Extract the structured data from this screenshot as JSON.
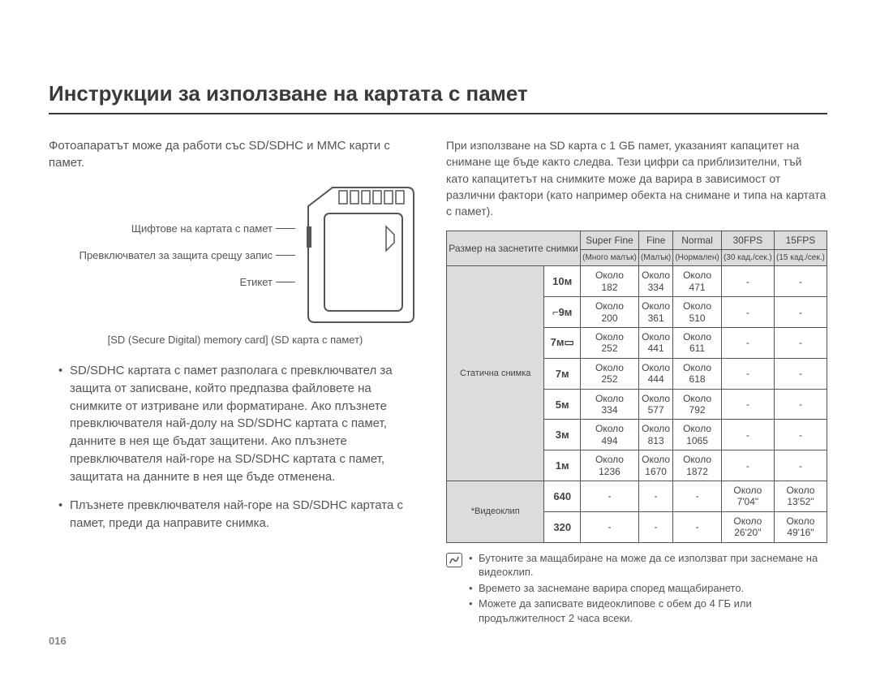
{
  "title": "Инструкции за използване на картата с памет",
  "page_number": "016",
  "left": {
    "intro": "Фотоапаратът може да работи със SD/SDHC и MMC карти с памет.",
    "diagram_labels": {
      "pins": "Щифтове на картата с памет",
      "switch": "Превключвател за защита срещу запис",
      "label": "Етикет"
    },
    "caption": "[SD (Secure Digital) memory card] (SD карта с памет)",
    "bullets": [
      "SD/SDHC картата с памет разполага с превключвател за защита от записване, който предпазва файловете на снимките от изтриване или форматиране. Ако плъзнете превключвателя най-долу на SD/SDHC картата с памет, данните в нея ще бъдат защитени. Ако плъзнете превключвателя най-горе на SD/SDHC картата с памет, защитата на данните в нея ще бъде отменена.",
      "Плъзнете превключвателя най-горе на SD/SDHC картата с памет, преди да направите снимка."
    ]
  },
  "right": {
    "intro": "При използване на SD карта с 1 GБ памет, указаният капацитет на снимане ще бъде както следва. Тези цифри са приблизителни, тъй като капацитетът на снимките може да варира в зависимост от различни фактори (като например обекта на снимане и типа на картата с памет).",
    "table": {
      "header_row1": [
        "Размер на заснетите снимки",
        "Super Fine",
        "Fine",
        "Normal",
        "30FPS",
        "15FPS"
      ],
      "header_row2": [
        "",
        "(Много малък)",
        "(Малък)",
        "(Нормален)",
        "(30 кад./сек.)",
        "(15 кад./сек.)"
      ],
      "section_still": "Статична снимка",
      "section_video": "*Видеоклип",
      "still_sizes": [
        "10ᴍ",
        "⌐9ᴍ",
        "7ᴍ▭",
        "7ᴍ",
        "5ᴍ",
        "3ᴍ",
        "1ᴍ"
      ],
      "around": "Около",
      "still_rows": [
        [
          "182",
          "334",
          "471"
        ],
        [
          "200",
          "361",
          "510"
        ],
        [
          "252",
          "441",
          "611"
        ],
        [
          "252",
          "444",
          "618"
        ],
        [
          "334",
          "577",
          "792"
        ],
        [
          "494",
          "813",
          "1065"
        ],
        [
          "1236",
          "1670",
          "1872"
        ]
      ],
      "video_sizes": [
        "640",
        "320"
      ],
      "video_rows": [
        [
          "7'04\"",
          "13'52\""
        ],
        [
          "26'20\"",
          "49'16\""
        ]
      ]
    },
    "notes": [
      "Бутоните за мащабиране на може да се използват при заснемане на видеоклип.",
      "Времето за заснемане варира според мащабирането.",
      "Можете да записвате видеоклипове с обем до 4 ГБ или продължителност 2 часа всеки."
    ]
  },
  "colors": {
    "text": "#4a4a4a",
    "border": "#555555",
    "header_bg": "#dcdcdc",
    "background": "#ffffff"
  }
}
